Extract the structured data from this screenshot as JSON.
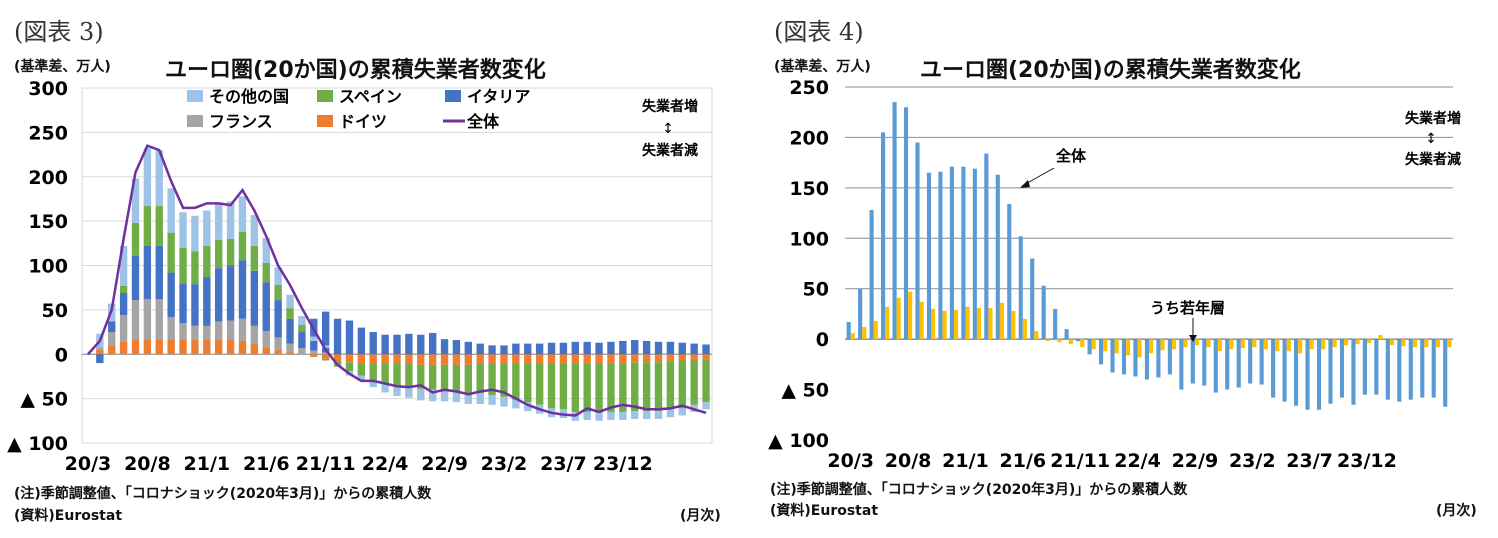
{
  "chart_data": [
    {
      "type": "bar",
      "figure_no": "(図表 3)",
      "title": "ユーロ圏(20か国)の累積失業者数変化",
      "ylabel": "(基準差、万人)",
      "xlabel": "(月次)",
      "ylim": [
        -100,
        300
      ],
      "yticks": [
        300,
        250,
        200,
        150,
        100,
        50,
        0,
        -50,
        -100
      ],
      "ytick_labels": [
        "300",
        "250",
        "200",
        "150",
        "100",
        "50",
        "0",
        "▲ 50",
        "▲ 100"
      ],
      "x_tick_labels": [
        "20/3",
        "20/8",
        "21/1",
        "21/6",
        "21/11",
        "22/4",
        "22/9",
        "23/2",
        "23/7",
        "23/12"
      ],
      "annotation_up": "失業者増",
      "annotation_arrow": "↕",
      "annotation_down": "失業者減",
      "note": "(注)季節調整値、「コロナショック(2020年3月)」からの累積人数",
      "source": "(資料)Eurostat",
      "grid": true,
      "legend_position": "top",
      "series": [
        {
          "name": "その他の国",
          "color": "#9dc3e6",
          "kind": "bar"
        },
        {
          "name": "スペイン",
          "color": "#70ad47",
          "kind": "bar"
        },
        {
          "name": "イタリア",
          "color": "#4472c4",
          "kind": "bar"
        },
        {
          "name": "フランス",
          "color": "#a5a5a5",
          "kind": "bar"
        },
        {
          "name": "ドイツ",
          "color": "#ed7d31",
          "kind": "bar"
        },
        {
          "name": "全体",
          "color": "#7030a0",
          "kind": "line"
        }
      ],
      "total": [
        0,
        15,
        50,
        130,
        205,
        235,
        230,
        195,
        165,
        165,
        170,
        170,
        168,
        185,
        162,
        133,
        100,
        78,
        52,
        28,
        5,
        -12,
        -22,
        -30,
        -30,
        -33,
        -36,
        -37,
        -35,
        -43,
        -40,
        -42,
        -45,
        -42,
        -40,
        -43,
        -50,
        -57,
        -62,
        -66,
        -68,
        -69,
        -61,
        -65,
        -60,
        -57,
        -59,
        -62,
        -62,
        -61,
        -58,
        -62,
        -66
      ],
      "germany": [
        0,
        5,
        10,
        14,
        16,
        17,
        17,
        17,
        17,
        17,
        17,
        17,
        16,
        15,
        12,
        8,
        5,
        2,
        0,
        -3,
        -5,
        -8,
        -9,
        -10,
        -11,
        -11,
        -11,
        -11,
        -12,
        -12,
        -12,
        -12,
        -12,
        -11,
        -11,
        -11,
        -11,
        -11,
        -11,
        -11,
        -10,
        -10,
        -10,
        -10,
        -10,
        -10,
        -9,
        -9,
        -9,
        -8,
        -7,
        -7,
        -6
      ],
      "france": [
        0,
        3,
        15,
        30,
        45,
        45,
        45,
        25,
        18,
        15,
        15,
        20,
        22,
        25,
        20,
        18,
        14,
        10,
        7,
        4,
        2,
        0,
        0,
        0,
        0,
        0,
        0,
        0,
        0,
        0,
        0,
        0,
        0,
        0,
        0,
        0,
        0,
        0,
        0,
        0,
        0,
        0,
        0,
        0,
        0,
        0,
        0,
        0,
        0,
        0,
        0,
        0,
        0
      ],
      "italy": [
        0,
        -10,
        12,
        25,
        50,
        60,
        60,
        50,
        45,
        47,
        55,
        60,
        62,
        66,
        62,
        55,
        42,
        28,
        18,
        11,
        5,
        0,
        0,
        0,
        0,
        0,
        0,
        0,
        0,
        0,
        0,
        0,
        0,
        0,
        0,
        0,
        0,
        0,
        0,
        0,
        0,
        0,
        0,
        0,
        0,
        0,
        0,
        0,
        0,
        0,
        0,
        0,
        0
      ],
      "spain": [
        0,
        0,
        0,
        8,
        37,
        45,
        45,
        45,
        40,
        37,
        35,
        32,
        30,
        32,
        28,
        22,
        17,
        12,
        8,
        0,
        -2,
        -6,
        -10,
        -14,
        -18,
        -22,
        -25,
        -26,
        -27,
        -28,
        -29,
        -30,
        -32,
        -33,
        -35,
        -37,
        -40,
        -43,
        -46,
        -50,
        -52,
        -55,
        -55,
        -56,
        -55,
        -55,
        -55,
        -55,
        -55,
        -54,
        -54,
        -50,
        -48
      ],
      "others": [
        0,
        15,
        20,
        45,
        50,
        65,
        63,
        50,
        40,
        40,
        40,
        42,
        42,
        40,
        35,
        28,
        20,
        15,
        10,
        5,
        3,
        0,
        -5,
        -6,
        -8,
        -10,
        -11,
        -12,
        -13,
        -13,
        -12,
        -12,
        -12,
        -12,
        -11,
        -11,
        -10,
        -10,
        -10,
        -10,
        -10,
        -10,
        -9,
        -9,
        -9,
        -9,
        -9,
        -9,
        -9,
        -9,
        -8,
        -8,
        -8
      ],
      "pos_other": [
        0,
        0,
        0,
        0,
        0,
        0,
        0,
        0,
        0,
        0,
        0,
        0,
        0,
        0,
        0,
        0,
        0,
        0,
        0,
        20,
        38,
        40,
        38,
        30,
        25,
        22,
        22,
        23,
        22,
        24,
        17,
        16,
        14,
        12,
        10,
        10,
        12,
        12,
        12,
        13,
        13,
        14,
        14,
        13,
        14,
        15,
        16,
        15,
        14,
        14,
        13,
        12,
        11
      ]
    },
    {
      "type": "bar",
      "figure_no": "(図表 4)",
      "title": "ユーロ圏(20か国)の累積失業者数変化",
      "ylabel": "(基準差、万人)",
      "xlabel": "(月次)",
      "ylim": [
        -100,
        250
      ],
      "yticks": [
        250,
        200,
        150,
        100,
        50,
        0,
        -50,
        -100
      ],
      "ytick_labels": [
        "250",
        "200",
        "150",
        "100",
        "50",
        "0",
        "▲ 50",
        "▲ 100"
      ],
      "x_tick_labels": [
        "20/3",
        "20/8",
        "21/1",
        "21/6",
        "21/11",
        "22/4",
        "22/9",
        "23/2",
        "23/7",
        "23/12"
      ],
      "annotation_up": "失業者増",
      "annotation_arrow": "↕",
      "annotation_down": "失業者減",
      "label_total": "全体",
      "label_youth": "うち若年層",
      "note": "(注)季節調整値、「コロナショック(2020年3月)」からの累積人数",
      "source": "(資料)Eurostat",
      "grid": true,
      "series": [
        {
          "name": "全体",
          "color": "#5b9bd5",
          "values": [
            17,
            50,
            128,
            205,
            235,
            230,
            195,
            165,
            166,
            171,
            171,
            169,
            184,
            163,
            134,
            102,
            80,
            53,
            30,
            10,
            -2,
            -15,
            -25,
            -33,
            -35,
            -37,
            -40,
            -38,
            -35,
            -50,
            -44,
            -46,
            -53,
            -50,
            -48,
            -44,
            -45,
            -58,
            -62,
            -66,
            -70,
            -70,
            -64,
            -58,
            -65,
            -55,
            -55,
            -60,
            -62,
            -60,
            -58,
            -58,
            -67
          ]
        },
        {
          "name": "うち若年層",
          "color": "#ffc000",
          "values": [
            6,
            12,
            18,
            32,
            41,
            47,
            37,
            30,
            28,
            29,
            32,
            31,
            31,
            36,
            28,
            20,
            8,
            -2,
            -3,
            -5,
            -8,
            -10,
            -12,
            -14,
            -16,
            -18,
            -14,
            -11,
            -10,
            -8,
            -6,
            -8,
            -12,
            -10,
            -9,
            -8,
            -10,
            -12,
            -12,
            -14,
            -10,
            -10,
            -8,
            -6,
            -5,
            -4,
            4,
            -6,
            -7,
            -8,
            -8,
            -8,
            -8
          ]
        }
      ]
    }
  ]
}
